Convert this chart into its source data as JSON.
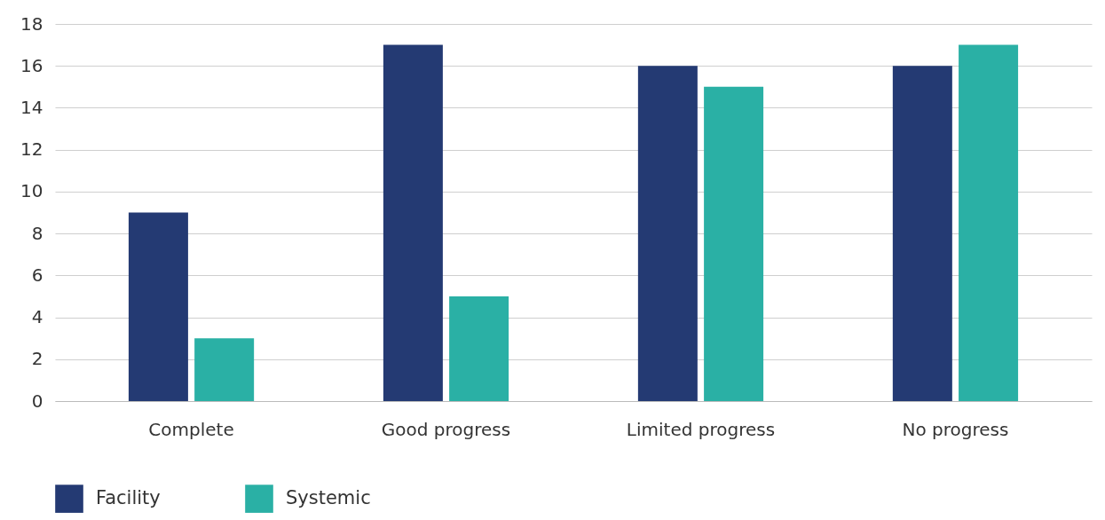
{
  "chart_data": {
    "type": "bar",
    "categories": [
      "Complete",
      "Good progress",
      "Limited progress",
      "No progress"
    ],
    "series": [
      {
        "name": "Facility",
        "color": "#243a73",
        "values": [
          9,
          17,
          16,
          16
        ]
      },
      {
        "name": "Systemic",
        "color": "#2ab0a5",
        "values": [
          3,
          5,
          15,
          17
        ]
      }
    ],
    "ylim": [
      0,
      18
    ],
    "yticks": [
      0,
      2,
      4,
      6,
      8,
      10,
      12,
      14,
      16,
      18
    ],
    "grid": "y",
    "legend": "bottom left"
  }
}
